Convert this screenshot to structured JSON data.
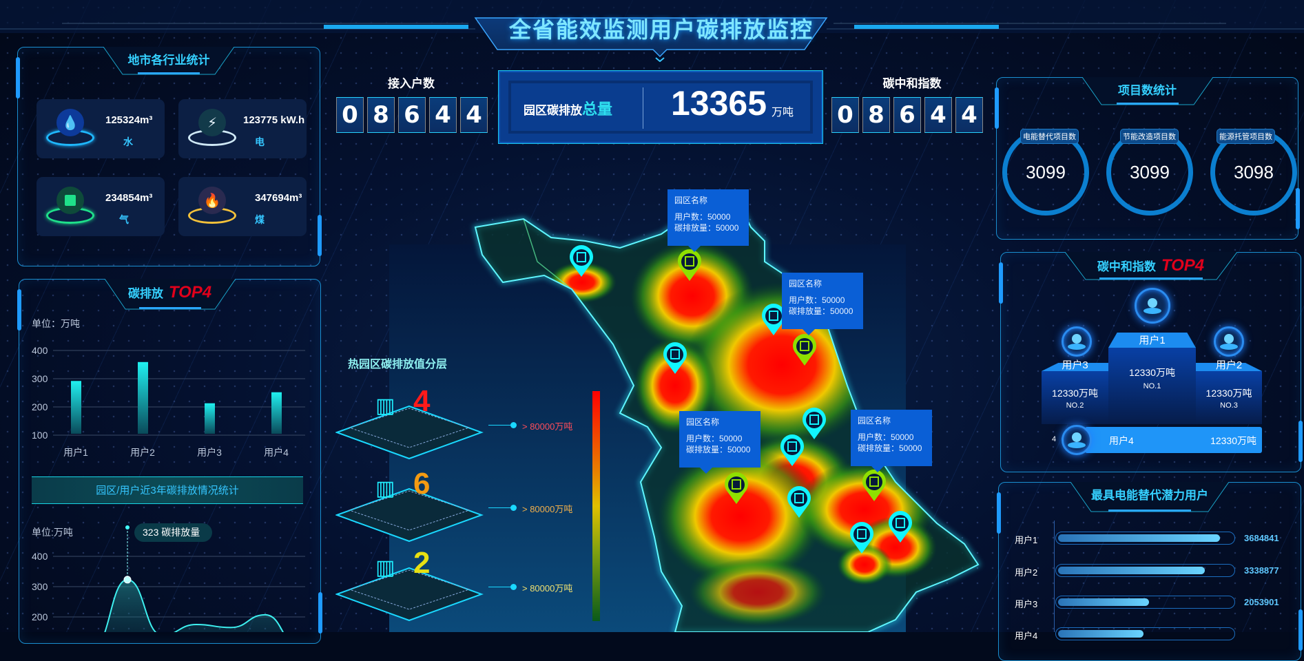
{
  "header": {
    "title": "全省能效监测用户碳排放监控"
  },
  "colors": {
    "accent": "#35d0ff",
    "top4": "#e0001b",
    "panel_border": "#1a8fd0",
    "tooltip": "#0a5fd6"
  },
  "industry": {
    "title": "地市各行业统计",
    "items": [
      {
        "value": "125324m³",
        "label": "水",
        "icon": "water-drop-icon",
        "color": "#1fb8ff"
      },
      {
        "value": "123775 kW.h",
        "label": "电",
        "icon": "lightning-icon",
        "color": "#cfe8f5"
      },
      {
        "value": "234854m³",
        "label": "气",
        "icon": "gas-icon",
        "color": "#1fe08a"
      },
      {
        "value": "347694m³",
        "label": "煤",
        "icon": "flame-icon",
        "color": "#f4c13a"
      }
    ]
  },
  "emission_top4": {
    "title": "碳排放",
    "badge": "TOP4",
    "unit": "单位：万吨"
  },
  "trend": {
    "banner": "园区/用户近3年碳排放情况统计",
    "unit": "单位:万吨",
    "tooltip_value": "323",
    "tooltip_label": "碳排放量"
  },
  "chart_data": [
    {
      "type": "bar",
      "categories": [
        "用户1",
        "用户2",
        "用户3",
        "用户4"
      ],
      "values": [
        292,
        359,
        213,
        252
      ],
      "ylabel": "单位：万吨",
      "yticks": [
        100,
        200,
        300,
        400
      ],
      "ylim": [
        100,
        400
      ],
      "grid": true
    },
    {
      "type": "area",
      "values": [
        100,
        323,
        140,
        175,
        165,
        207,
        100
      ],
      "ylabel": "单位:万吨",
      "yticks": [
        200,
        300,
        400
      ],
      "ylim": [
        100,
        400
      ],
      "highlight": {
        "value": 323,
        "label": "碳排放量"
      },
      "grid": true
    }
  ],
  "access": {
    "label": "接入户数",
    "digits": [
      "0",
      "8",
      "6",
      "4",
      "4"
    ]
  },
  "total": {
    "label_prefix": "园区碳排放",
    "label_emph": "总量",
    "value": "13365",
    "unit": "万吨"
  },
  "neutral_index": {
    "label": "碳中和指数",
    "digits": [
      "0",
      "8",
      "6",
      "4",
      "4"
    ]
  },
  "layers": {
    "title": "热园区碳排放值分层",
    "items": [
      {
        "count": "4",
        "range": "> 80000万吨",
        "color": "#ff1a1a",
        "text_color": "#ff4d5a"
      },
      {
        "count": "6",
        "range": "> 80000万吨",
        "color": "#f39a12",
        "text_color": "#f3b04a"
      },
      {
        "count": "2",
        "range": "> 80000万吨",
        "color": "#e8e012",
        "text_color": "#f0e070"
      }
    ]
  },
  "map": {
    "tooltips": [
      {
        "name": "园区名称",
        "users": "用户数：50000",
        "emission": "碳排放量：50000"
      },
      {
        "name": "园区名称",
        "users": "用户数：50000",
        "emission": "碳排放量：50000"
      },
      {
        "name": "园区名称",
        "users": "用户数：50000",
        "emission": "碳排放量：50000"
      },
      {
        "name": "园区名称",
        "users": "用户数：50000",
        "emission": "碳排放量：50000"
      }
    ]
  },
  "projects": {
    "title": "项目数统计",
    "items": [
      {
        "label": "电能替代项目数",
        "value": "3099"
      },
      {
        "label": "节能改造项目数",
        "value": "3099"
      },
      {
        "label": "能源托管项目数",
        "value": "3098"
      }
    ]
  },
  "neutral_top4": {
    "title": "碳中和指数",
    "badge": "TOP4",
    "podium": [
      {
        "name": "用户1",
        "value": "12330万吨",
        "rank": "NO.1"
      },
      {
        "name": "用户2",
        "value": "12330万吨",
        "rank": "NO.3"
      },
      {
        "name": "用户3",
        "value": "12330万吨",
        "rank": "NO.2"
      },
      {
        "name": "用户4",
        "value": "12330万吨",
        "rank": "4"
      }
    ]
  },
  "potential": {
    "title": "最具电能替代潜力用户",
    "rows": [
      {
        "name": "用户1",
        "value": "3684841",
        "fill": 0.93
      },
      {
        "name": "用户2",
        "value": "3338877",
        "fill": 0.84
      },
      {
        "name": "用户3",
        "value": "2053901",
        "fill": 0.52
      },
      {
        "name": "用户4",
        "fill": 0.49
      }
    ]
  }
}
